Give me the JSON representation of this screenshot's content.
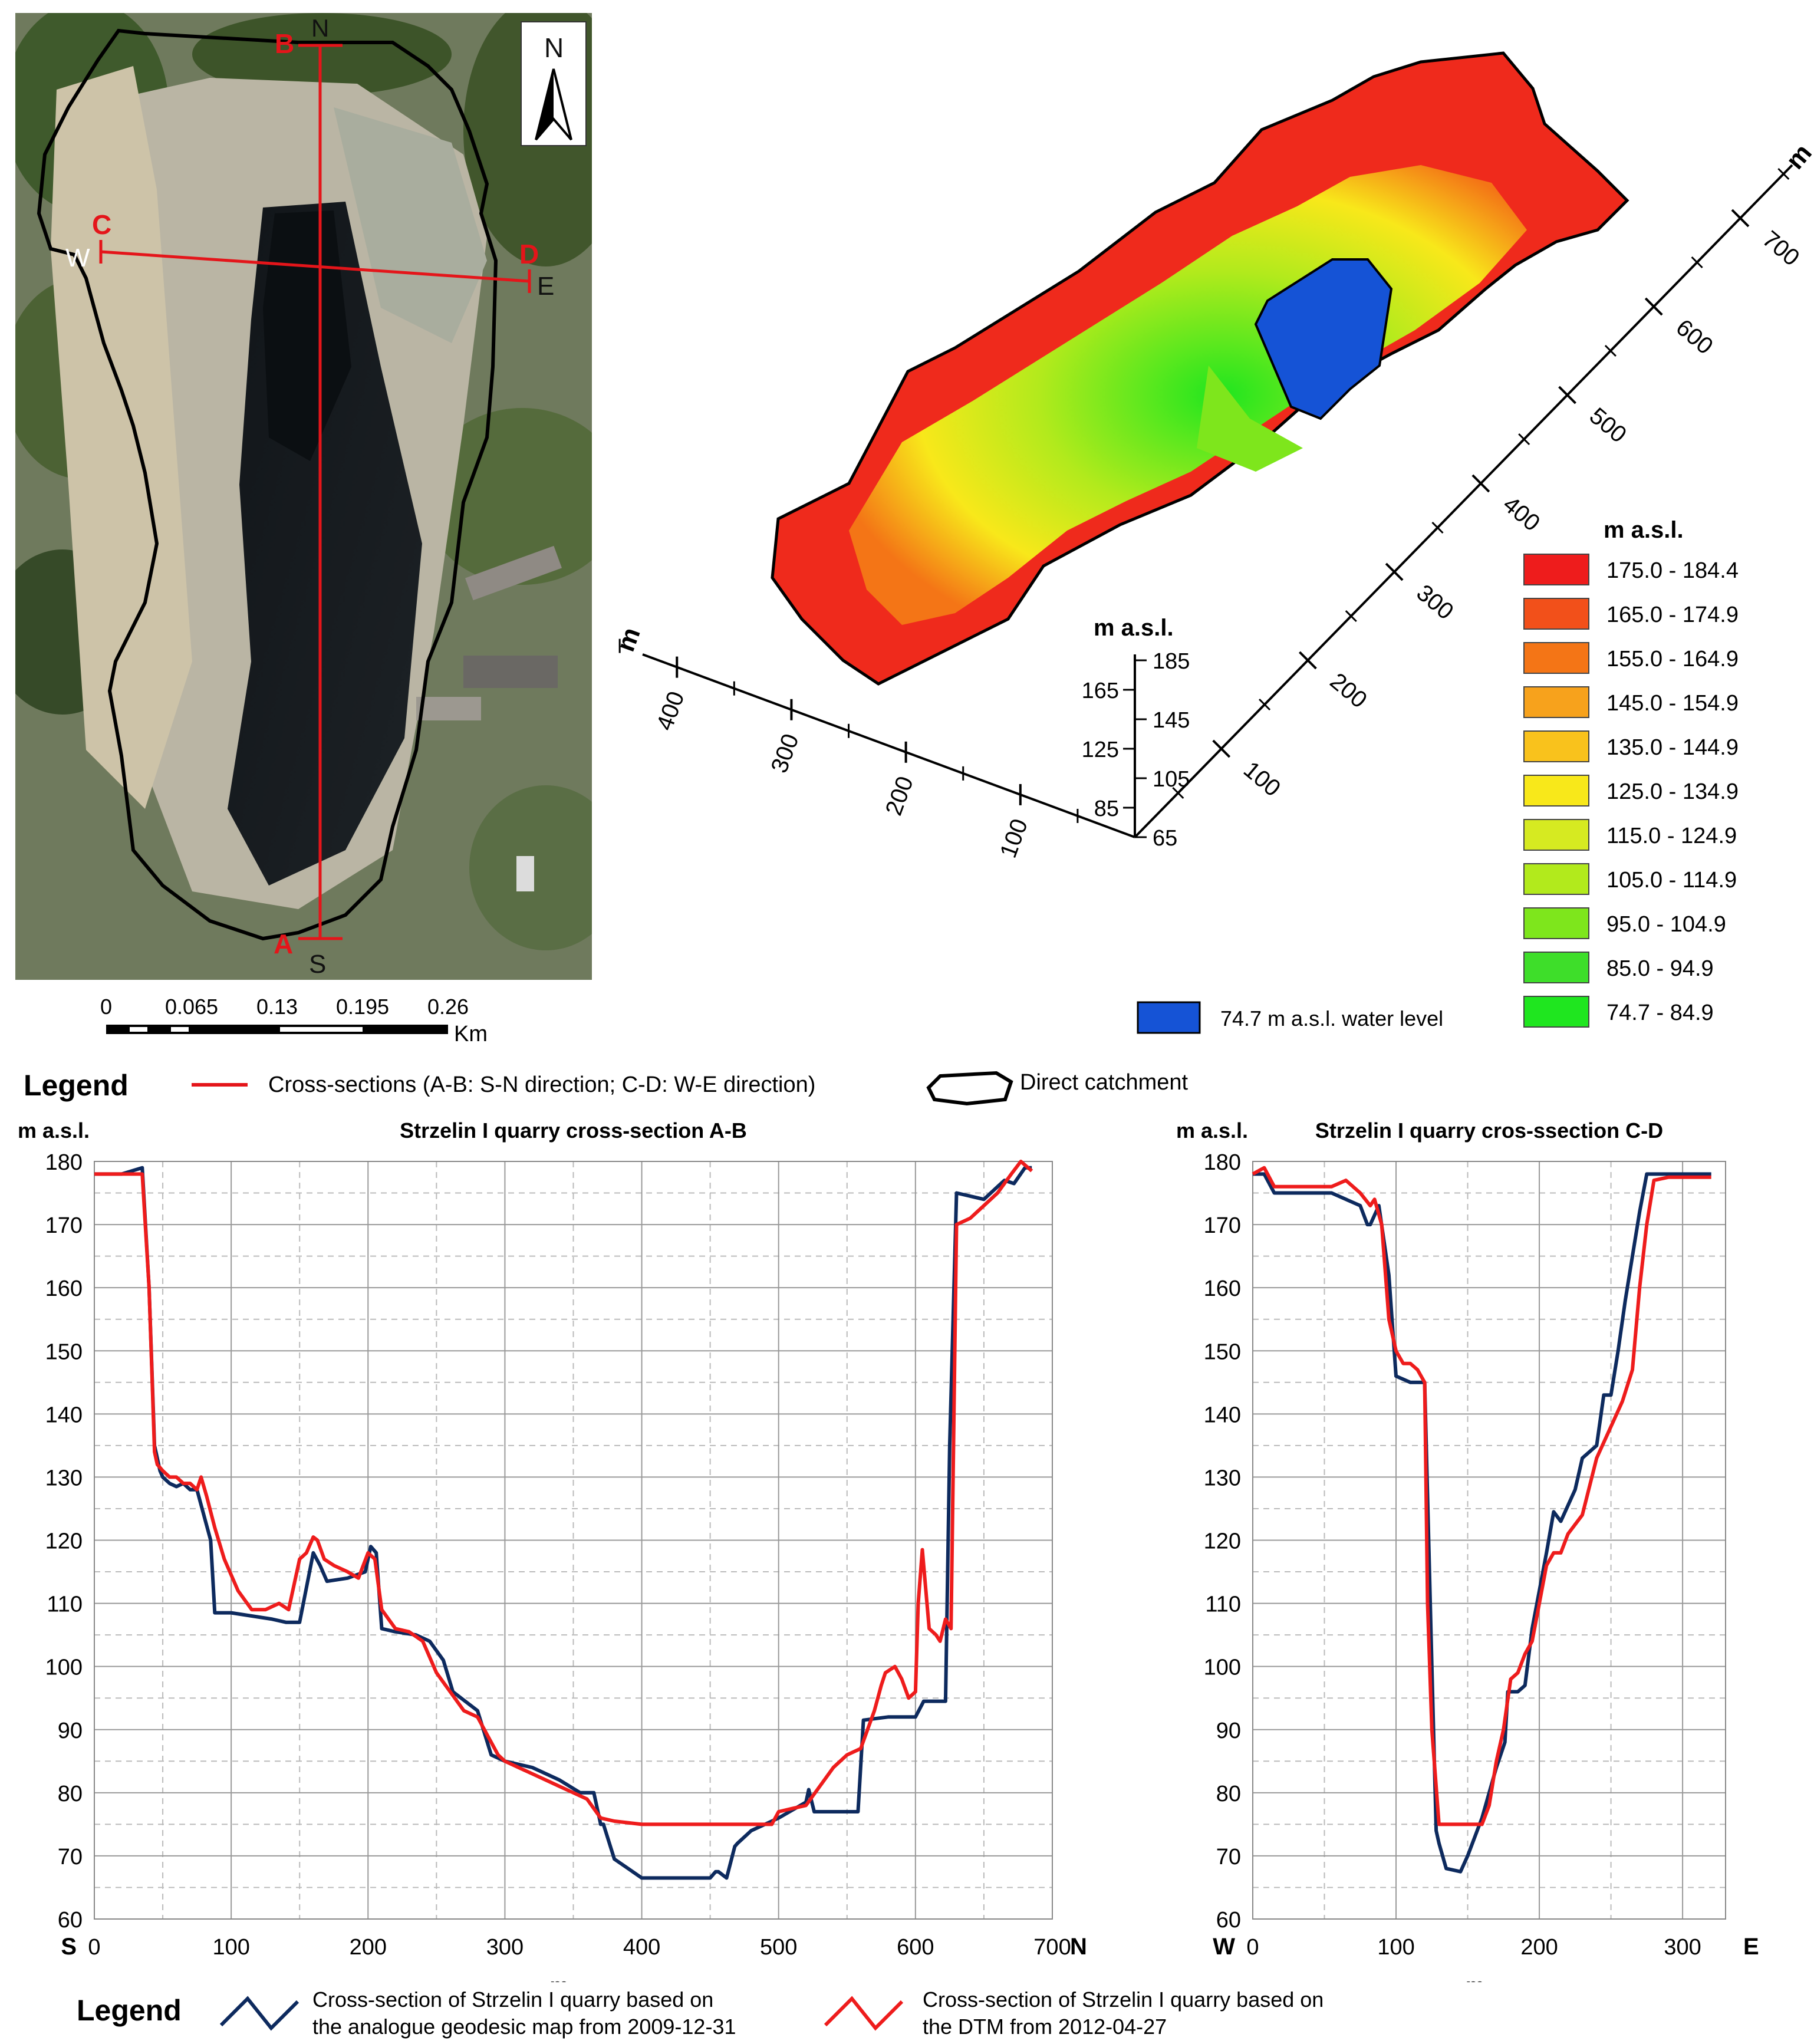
{
  "map": {
    "north_label": "N",
    "points": {
      "A": "A",
      "B": "B",
      "C": "C",
      "D": "D"
    },
    "directions": {
      "n": "N",
      "s": "S",
      "w": "W",
      "e": "E"
    },
    "scale_ticks": [
      "0",
      "0.065",
      "0.13",
      "0.195",
      "0.26"
    ],
    "scale_unit": "Km"
  },
  "relief": {
    "x_axis_unit": "m",
    "x_ticks": [
      "100",
      "200",
      "300",
      "400"
    ],
    "y_axis_unit": "m",
    "y_ticks": [
      "100",
      "200",
      "300",
      "400",
      "500",
      "600",
      "700"
    ],
    "z_axis_unit": "m a.s.l.",
    "z_ticks_left": [
      "165",
      "125",
      "85"
    ],
    "z_ticks_right": [
      "185",
      "145",
      "105",
      "65"
    ],
    "legend_title": "m  a.s.l.",
    "classes": [
      {
        "label": "175.0 - 184.4",
        "color": "#ee1c1c"
      },
      {
        "label": "165.0 - 174.9",
        "color": "#f2501a"
      },
      {
        "label": "155.0 - 164.9",
        "color": "#f47516"
      },
      {
        "label": "145.0 - 154.9",
        "color": "#f7a21c"
      },
      {
        "label": "135.0 - 144.9",
        "color": "#f9c21c"
      },
      {
        "label": "125.0 - 134.9",
        "color": "#f8e81a"
      },
      {
        "label": "115.0 - 124.9",
        "color": "#d6ea21"
      },
      {
        "label": "105.0 - 114.9",
        "color": "#b2ea1c"
      },
      {
        "label": "95.0 - 104.9",
        "color": "#7ee61c"
      },
      {
        "label": "85.0 - 94.9",
        "color": "#3ede2a"
      },
      {
        "label": "74.7 - 84.9",
        "color": "#1fe61f"
      }
    ],
    "water": {
      "label": "74.7 m a.s.l.  water level",
      "color": "#1553d6"
    }
  },
  "legend_top": {
    "title": "Legend",
    "cross_sections": "Cross-sections (A-B: S-N direction; C-D: W-E direction)",
    "catchment": "Direct catchment"
  },
  "legend_bottom": {
    "title": "Legend",
    "analogue_line1": "Cross-section of Strzelin I quarry based on",
    "analogue_line2": "the analogue geodesic map from 2009-12-31",
    "dtm_line1": "Cross-section of Strzelin I quarry based on",
    "dtm_line2": "the DTM from 2012-04-27"
  },
  "chart_data": [
    {
      "type": "line",
      "title": "Strzelin I quarry cross-section A-B",
      "xlabel": "m",
      "ylabel": "m a.s.l.",
      "x_start_label": "S",
      "x_end_label": "N",
      "xlim": [
        0,
        700
      ],
      "ylim": [
        60,
        180
      ],
      "x_ticks": [
        0,
        100,
        200,
        300,
        400,
        500,
        600,
        700
      ],
      "y_ticks": [
        60,
        70,
        80,
        90,
        100,
        110,
        120,
        130,
        140,
        150,
        160,
        170,
        180
      ],
      "grid": true,
      "series": [
        {
          "color": "#0d2a5e",
          "x": [
            0,
            20,
            35,
            40,
            44,
            46,
            48,
            50,
            55,
            60,
            65,
            70,
            75,
            80,
            85,
            88,
            100,
            115,
            130,
            140,
            150,
            160,
            165,
            170,
            185,
            198,
            202,
            206,
            210,
            220,
            235,
            245,
            255,
            262,
            268,
            280,
            290,
            295,
            300,
            320,
            340,
            355,
            365,
            370,
            372,
            380,
            390,
            400,
            420,
            440,
            450,
            454,
            456,
            462,
            468,
            470,
            480,
            500,
            520,
            522,
            526,
            540,
            558,
            562,
            580,
            600,
            606,
            620,
            622,
            625,
            630,
            650,
            660,
            665,
            672,
            680,
            685
          ],
          "y": [
            178,
            178,
            179,
            160,
            135,
            133,
            131,
            130,
            129,
            128.5,
            129,
            128,
            128,
            124,
            120,
            108.5,
            108.5,
            108,
            107.5,
            107,
            107,
            118,
            116,
            113.5,
            114,
            115,
            119,
            118,
            106,
            105.5,
            105,
            104,
            101,
            96,
            95,
            93,
            86,
            85.5,
            85,
            84,
            82,
            80,
            80,
            75,
            75,
            69.5,
            68,
            66.5,
            66.5,
            66.5,
            66.5,
            67.5,
            67.5,
            66.5,
            71.5,
            72,
            74,
            76,
            78.5,
            80.5,
            77,
            77,
            77,
            91.5,
            92,
            92,
            94.5,
            94.5,
            94.5,
            135,
            175,
            174,
            176,
            177,
            176.5,
            179,
            179
          ]
        },
        {
          "color": "#ee1c1c",
          "x": [
            0,
            20,
            35,
            40,
            44,
            46,
            50,
            55,
            60,
            65,
            70,
            75,
            78,
            82,
            88,
            95,
            105,
            115,
            125,
            135,
            142,
            150,
            155,
            160,
            163,
            168,
            175,
            185,
            193,
            200,
            205,
            210,
            220,
            230,
            240,
            250,
            260,
            270,
            280,
            290,
            295,
            300,
            310,
            320,
            330,
            340,
            350,
            360,
            370,
            380,
            400,
            420,
            440,
            460,
            480,
            495,
            500,
            510,
            520,
            530,
            540,
            550,
            560,
            570,
            575,
            578,
            585,
            590,
            595,
            600,
            602,
            605,
            610,
            615,
            618,
            622,
            626,
            630,
            640,
            650,
            660,
            670,
            677,
            685
          ],
          "y": [
            178,
            178,
            178,
            160,
            134,
            132,
            131,
            130,
            130,
            129,
            129,
            128,
            130,
            127,
            122,
            117,
            112,
            109,
            109,
            110,
            109,
            117,
            118,
            120.5,
            120,
            117,
            116,
            115,
            114,
            118,
            117,
            109,
            106,
            105.5,
            104,
            99,
            96,
            93,
            92,
            88,
            86,
            85,
            84,
            83,
            82,
            81,
            80,
            79,
            76,
            75.5,
            75,
            75,
            75,
            75,
            75,
            75,
            77,
            77.5,
            78,
            81,
            84,
            86,
            87,
            93,
            97,
            99,
            100,
            98,
            95,
            96,
            110,
            118.5,
            106,
            105,
            104,
            107.5,
            106,
            170,
            171,
            173,
            175,
            178,
            180,
            178.5
          ]
        }
      ]
    },
    {
      "type": "line",
      "title": "Strzelin I quarry cros-ssection  C-D",
      "xlabel": "m",
      "ylabel": "m a.s.l.",
      "x_start_label": "W",
      "x_end_label": "E",
      "xlim": [
        0,
        330
      ],
      "ylim": [
        60,
        180
      ],
      "x_ticks": [
        0,
        100,
        200,
        300
      ],
      "y_ticks": [
        60,
        70,
        80,
        90,
        100,
        110,
        120,
        130,
        140,
        150,
        160,
        170,
        180
      ],
      "grid": true,
      "series": [
        {
          "color": "#0d2a5e",
          "x": [
            0,
            8,
            15,
            25,
            40,
            55,
            65,
            75,
            80,
            82,
            88,
            95,
            100,
            110,
            120,
            125,
            128,
            130,
            135,
            145,
            150,
            160,
            165,
            170,
            176,
            178,
            185,
            190,
            195,
            200,
            205,
            210,
            215,
            225,
            230,
            240,
            245,
            250,
            255,
            260,
            265,
            270,
            275,
            282,
            290,
            300,
            320
          ],
          "y": [
            178,
            178,
            175,
            175,
            175,
            175,
            174,
            173,
            170,
            170,
            173,
            162,
            146,
            145,
            145,
            100,
            74,
            72,
            68,
            67.5,
            70,
            76,
            80,
            84,
            88,
            96,
            96,
            97,
            106,
            112,
            118,
            124.5,
            123,
            128,
            133,
            135,
            143,
            143,
            150,
            158,
            165,
            172,
            178,
            178,
            178,
            178,
            178
          ]
        },
        {
          "color": "#ee1c1c",
          "x": [
            0,
            8,
            15,
            25,
            40,
            55,
            65,
            75,
            82,
            85,
            90,
            95,
            100,
            105,
            110,
            115,
            120,
            122,
            125,
            130,
            135,
            140,
            145,
            150,
            155,
            160,
            165,
            170,
            175,
            180,
            185,
            190,
            195,
            200,
            205,
            210,
            215,
            220,
            230,
            240,
            250,
            258,
            265,
            270,
            275,
            280,
            290,
            300,
            320
          ],
          "y": [
            178,
            179,
            176,
            176,
            176,
            176,
            177,
            175,
            173,
            174,
            170,
            155,
            150,
            148,
            148,
            147,
            145,
            110,
            90,
            75,
            75,
            75,
            75,
            75,
            75,
            75,
            78,
            85,
            90,
            98,
            99,
            102,
            104,
            110,
            116,
            118,
            118,
            121,
            124,
            133,
            138,
            142,
            147,
            160,
            170,
            177,
            177.5,
            177.5,
            177.5
          ]
        }
      ]
    }
  ]
}
